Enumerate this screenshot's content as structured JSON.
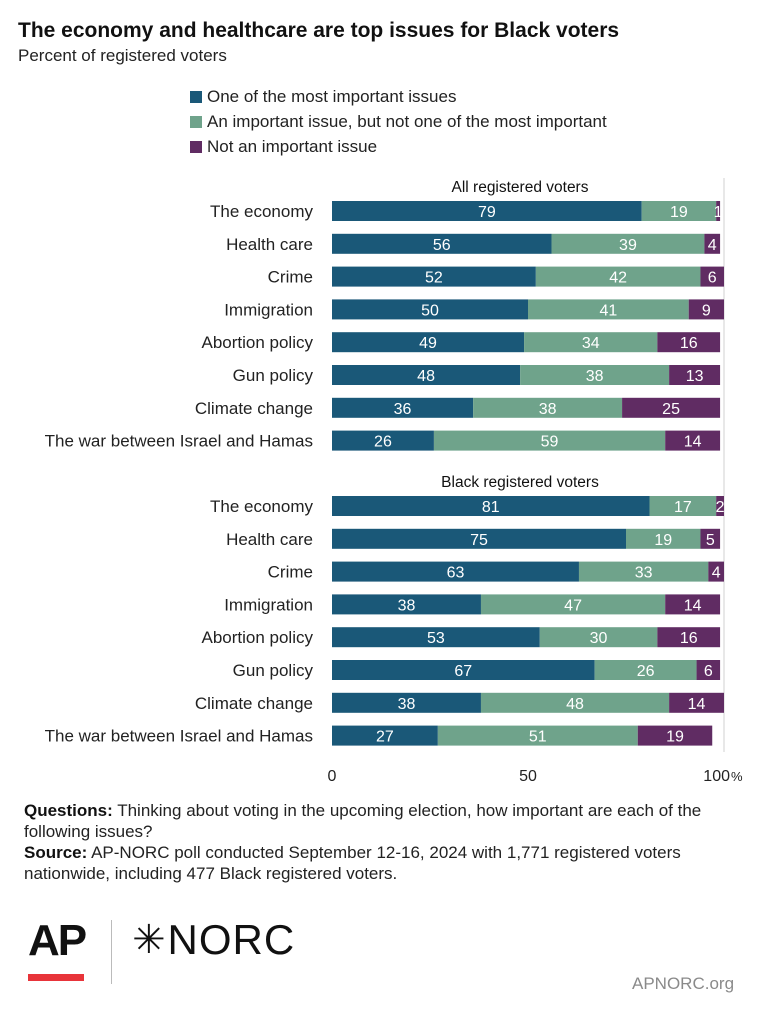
{
  "title": "The economy and healthcare are top issues for Black voters",
  "subtitle": "Percent of registered voters",
  "colors": {
    "most_important": "#1a5878",
    "important": "#6fa38b",
    "not_important": "#602c63"
  },
  "chart_data": {
    "type": "bar",
    "orientation": "horizontal",
    "stacked": true,
    "xlim": [
      0,
      100
    ],
    "x_ticks": [
      "0",
      "50",
      "100"
    ],
    "x_unit": "%",
    "legend": [
      "One of the most important issues",
      "An important issue, but not one of the most important",
      "Not an important issue"
    ],
    "groups": [
      {
        "title": "All registered voters",
        "categories": [
          "The economy",
          "Health care",
          "Crime",
          "Immigration",
          "Abortion policy",
          "Gun policy",
          "Climate change",
          "The war between Israel and Hamas"
        ],
        "series": [
          {
            "name": "One of the most important issues",
            "values": [
              79,
              56,
              52,
              50,
              49,
              48,
              36,
              26
            ]
          },
          {
            "name": "An important issue, but not one of the most important",
            "values": [
              19,
              39,
              42,
              41,
              34,
              38,
              38,
              59
            ]
          },
          {
            "name": "Not an important issue",
            "values": [
              1,
              4,
              6,
              9,
              16,
              13,
              25,
              14
            ]
          }
        ]
      },
      {
        "title": "Black registered voters",
        "categories": [
          "The economy",
          "Health care",
          "Crime",
          "Immigration",
          "Abortion policy",
          "Gun policy",
          "Climate change",
          "The war between Israel and Hamas"
        ],
        "series": [
          {
            "name": "One of the most important issues",
            "values": [
              81,
              75,
              63,
              38,
              53,
              67,
              38,
              27
            ]
          },
          {
            "name": "An important issue, but not one of the most important",
            "values": [
              17,
              19,
              33,
              47,
              30,
              26,
              48,
              51
            ]
          },
          {
            "name": "Not an important issue",
            "values": [
              2,
              5,
              4,
              14,
              16,
              6,
              14,
              19
            ]
          }
        ]
      }
    ]
  },
  "notes": {
    "questions_label": "Questions:",
    "questions_text": " Thinking about voting in the upcoming election, how important are each of the following issues?",
    "source_label": "Source:",
    "source_text": " AP-NORC poll conducted September 12-16, 2024 with 1,771 registered voters nationwide, including 477 Black registered voters."
  },
  "logos": {
    "ap": "AP",
    "norc_star": "✳",
    "norc": "NORC"
  },
  "site": "APNORC.org"
}
